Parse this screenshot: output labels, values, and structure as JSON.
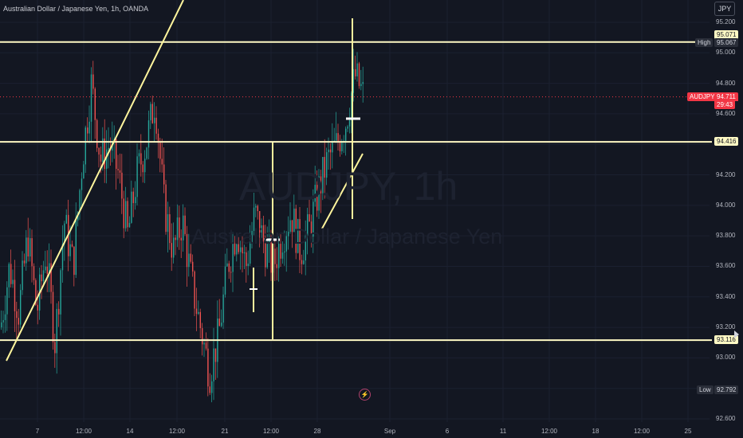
{
  "header": {
    "title": "Australian Dollar / Japanese Yen, 1h, OANDA",
    "currency": "JPY"
  },
  "watermark": {
    "symbol": "AUDJPY, 1h",
    "description": "Australian Dollar / Japanese Yen"
  },
  "price_axis": [
    "95.200",
    "95.000",
    "94.800",
    "94.600",
    "94.400",
    "94.200",
    "94.000",
    "93.800",
    "93.600",
    "93.400",
    "93.200",
    "93.000",
    "92.800",
    "92.600"
  ],
  "time_axis": [
    "7",
    "12:00",
    "14",
    "12:00",
    "21",
    "12:00",
    "28",
    "Sep",
    "6",
    "11",
    "12:00",
    "18",
    "12:00",
    "25"
  ],
  "tags": {
    "level_top": "95.071",
    "high_label": "High",
    "high_value": "95.067",
    "symbol": "AUDJPY",
    "last_price": "94.711",
    "countdown": "29:43",
    "level_mid": "94.416",
    "level_bottom": "93.116",
    "low_label": "Low",
    "low_value": "92.792"
  },
  "colors": {
    "background": "#131722",
    "up": "#26a69a",
    "down": "#ef5350",
    "drawing": "#fff59d",
    "price_red": "#f23645"
  },
  "icons": {
    "flash": "lightning-icon",
    "scroll": "scroll-right-icon"
  },
  "chart_data": {
    "type": "candlestick",
    "symbol": "AUDJPY",
    "interval": "1h",
    "y_range": [
      92.6,
      95.2
    ],
    "last_price": 94.711,
    "high": 95.067,
    "low": 92.792,
    "horizontal_levels": [
      95.071,
      94.416,
      93.116
    ],
    "trendlines": [
      {
        "from": {
          "x": "7",
          "price": 92.99
        },
        "to": {
          "x": "14",
          "price": 95.3
        }
      },
      {
        "from": {
          "x": "28",
          "price": 93.85
        },
        "to": {
          "x": "28",
          "price": 94.33
        }
      }
    ],
    "anchors": [
      {
        "x": "12:00",
        "price": 93.11
      },
      {
        "x": "12:00",
        "price": 94.416
      }
    ],
    "close_path": [
      {
        "x": "7",
        "price": 93.2
      },
      {
        "x": "7",
        "price": 93.6
      },
      {
        "x": "7",
        "price": 93.3
      },
      {
        "x": "7",
        "price": 93.8
      },
      {
        "x": "7",
        "price": 93.3
      },
      {
        "x": "7",
        "price": 93.7
      },
      {
        "x": "7",
        "price": 93.1
      },
      {
        "x": "7",
        "price": 93.9
      },
      {
        "x": "12:00",
        "price": 93.6
      },
      {
        "x": "12:00",
        "price": 94.3
      },
      {
        "x": "12:00",
        "price": 94.8
      },
      {
        "x": "12:00",
        "price": 94.3
      },
      {
        "x": "14",
        "price": 94.4
      },
      {
        "x": "14",
        "price": 94.2
      },
      {
        "x": "14",
        "price": 93.8
      },
      {
        "x": "14",
        "price": 94.2
      },
      {
        "x": "14",
        "price": 94.4
      },
      {
        "x": "14",
        "price": 94.7
      },
      {
        "x": "12:00",
        "price": 94.0
      },
      {
        "x": "12:00",
        "price": 93.7
      },
      {
        "x": "12:00",
        "price": 93.9
      },
      {
        "x": "12:00",
        "price": 93.5
      },
      {
        "x": "12:00",
        "price": 93.2
      },
      {
        "x": "21",
        "price": 92.9
      },
      {
        "x": "21",
        "price": 93.15
      },
      {
        "x": "21",
        "price": 93.6
      },
      {
        "x": "21",
        "price": 93.85
      },
      {
        "x": "21",
        "price": 93.6
      },
      {
        "x": "21",
        "price": 93.95
      },
      {
        "x": "21",
        "price": 93.75
      },
      {
        "x": "12:00",
        "price": 93.6
      },
      {
        "x": "12:00",
        "price": 93.8
      },
      {
        "x": "12:00",
        "price": 93.95
      },
      {
        "x": "12:00",
        "price": 93.7
      },
      {
        "x": "28",
        "price": 93.85
      },
      {
        "x": "28",
        "price": 94.1
      },
      {
        "x": "28",
        "price": 94.3
      },
      {
        "x": "28",
        "price": 94.4
      },
      {
        "x": "28",
        "price": 94.55
      },
      {
        "x": "28",
        "price": 94.85
      },
      {
        "x": "28",
        "price": 94.711
      }
    ]
  }
}
